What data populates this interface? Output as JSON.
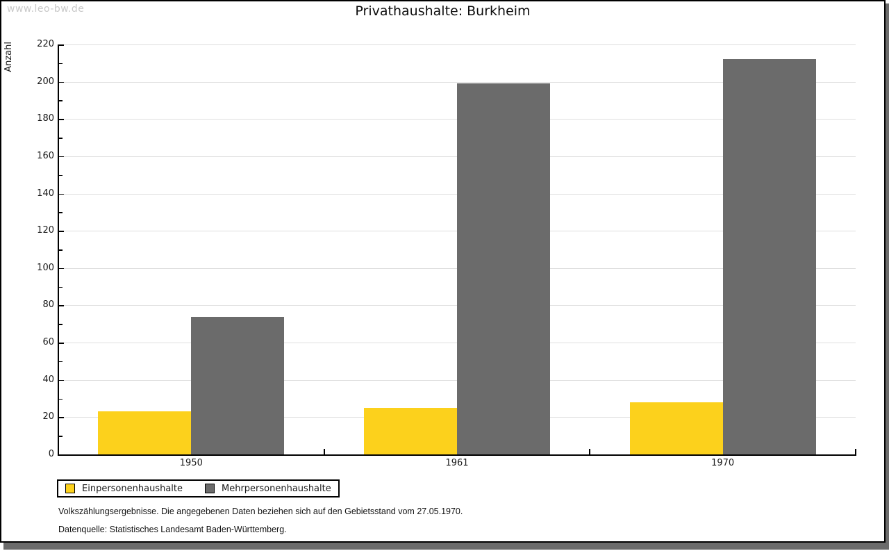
{
  "watermark": "www.leo-bw.de",
  "title": "Privathaushalte: Burkheim",
  "chart_data": {
    "type": "bar",
    "title": "Privathaushalte: Burkheim",
    "xlabel": "",
    "ylabel": "Anzahl",
    "categories": [
      "1950",
      "1961",
      "1970"
    ],
    "series": [
      {
        "name": "Einpersonenhaushalte",
        "color": "#fcd11c",
        "values": [
          23,
          25,
          28
        ]
      },
      {
        "name": "Mehrpersonenhaushalte",
        "color": "#6b6b6b",
        "values": [
          74,
          199,
          212
        ]
      }
    ],
    "ylim": [
      0,
      220
    ],
    "ytick_labels": [
      0,
      20,
      40,
      60,
      80,
      100,
      120,
      140,
      160,
      180,
      200,
      220
    ],
    "ytick_major_step": 20,
    "ytick_minor_step": 10,
    "grid": "horizontal major gridlines on",
    "legend_position": "bottom-left"
  },
  "footnotes": {
    "line1": "Volkszählungsergebnisse. Die angegebenen Daten beziehen sich auf den Gebietsstand vom 27.05.1970.",
    "line2": "Datenquelle: Statistisches Landesamt Baden-Württemberg."
  },
  "colors": {
    "series1": "#fcd11c",
    "series2": "#6b6b6b",
    "gridline": "#dedede",
    "frame_shadow": "#6b6b6b",
    "watermark": "#c9c9c9"
  }
}
